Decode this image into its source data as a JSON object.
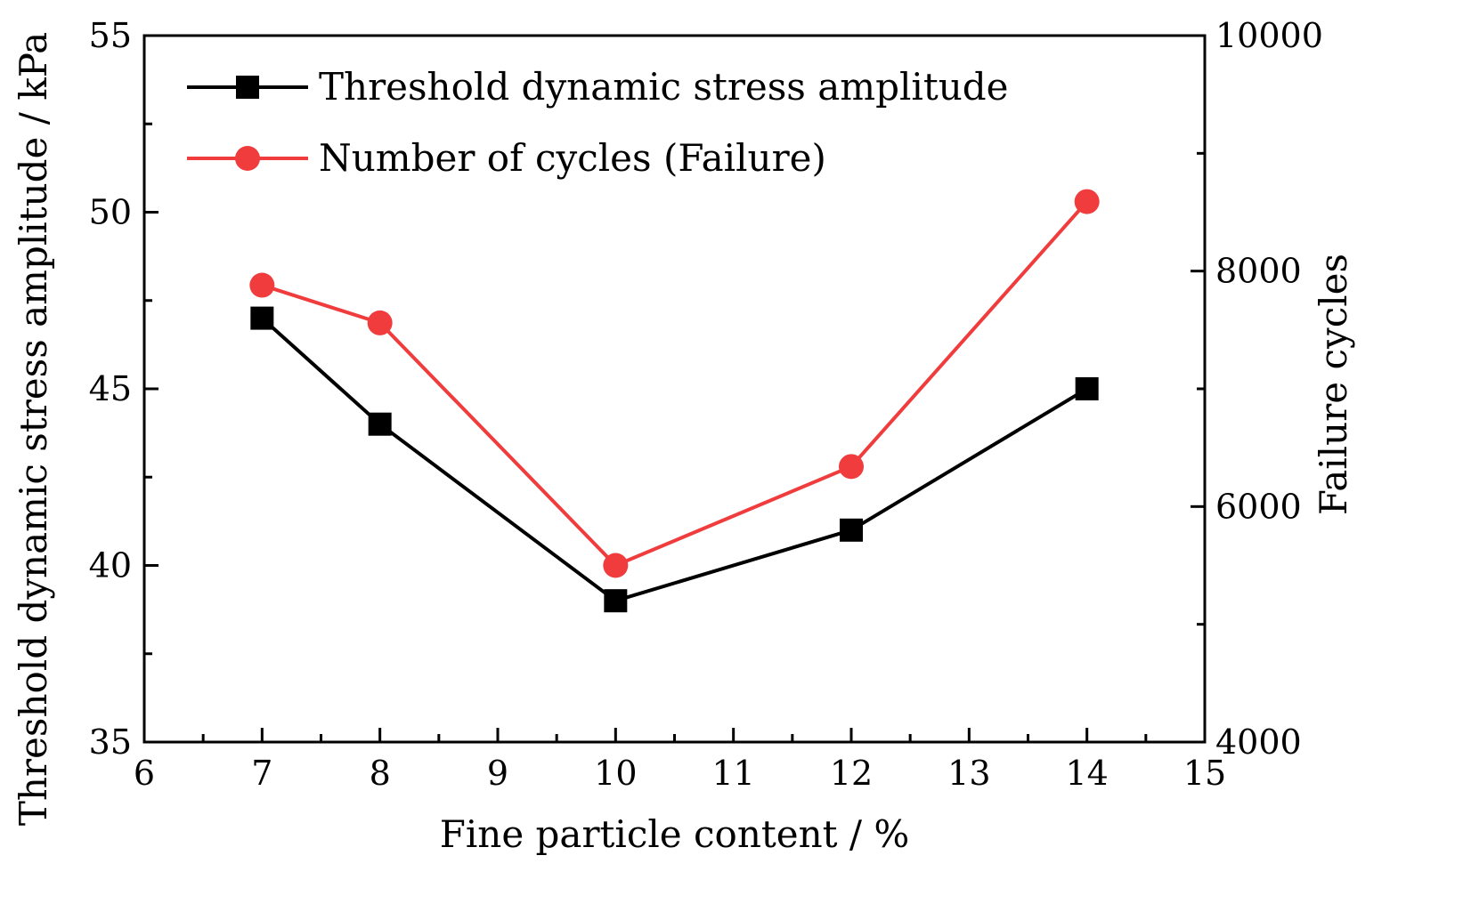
{
  "chart_data": {
    "type": "line",
    "title": "",
    "xlabel": "Fine particle content / %",
    "ylabel": "Threshold dynamic stress amplitude / kPa",
    "y2label": "Failure cycles",
    "xlim": [
      6,
      15
    ],
    "ylim": [
      35,
      55
    ],
    "y2lim": [
      4000,
      10000
    ],
    "xticks": [
      6,
      7,
      8,
      9,
      10,
      11,
      12,
      13,
      14,
      15
    ],
    "yticks": [
      35,
      40,
      45,
      50,
      55
    ],
    "y2ticks": [
      4000,
      6000,
      8000,
      10000
    ],
    "legend_position": "top-left",
    "series": [
      {
        "name": "Threshold dynamic stress amplitude",
        "axis": "left",
        "color": "#000000",
        "marker": "square",
        "x": [
          7,
          8,
          10,
          12,
          14
        ],
        "values": [
          47,
          44,
          39,
          41,
          45
        ]
      },
      {
        "name": "Number of cycles (Failure)",
        "axis": "right",
        "color": "#f03c3c",
        "marker": "circle",
        "x": [
          7,
          8,
          10,
          12,
          14
        ],
        "values": [
          7880,
          7560,
          5500,
          6340,
          8590
        ]
      }
    ]
  }
}
